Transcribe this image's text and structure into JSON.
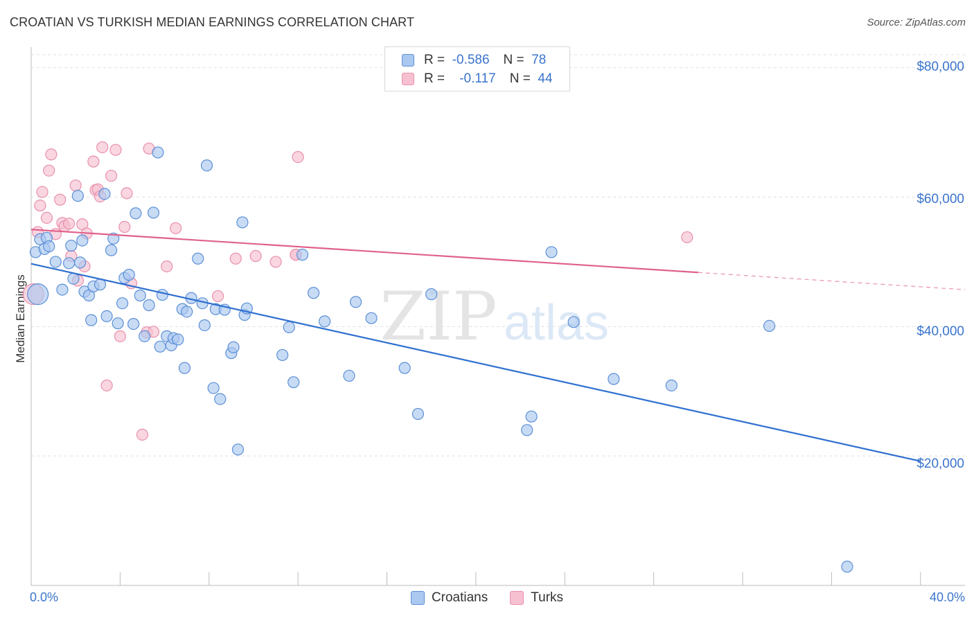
{
  "title": "CROATIAN VS TURKISH MEDIAN EARNINGS CORRELATION CHART",
  "source": "Source: ZipAtlas.com",
  "watermark": {
    "zip": "ZIP",
    "atlas": "atlas"
  },
  "legend": {
    "rows": [
      {
        "r_label": "R =",
        "r_value": "-0.586",
        "n_label": "N =",
        "n_value": "78"
      },
      {
        "r_label": "R =",
        "r_value": "-0.117",
        "n_label": "N =",
        "n_value": "44"
      }
    ]
  },
  "bottom_legend": [
    "Croatians",
    "Turks"
  ],
  "colors": {
    "croatians_fill": "#aac8f0",
    "croatians_stroke": "#5b8fd6",
    "croatians_line": "#2e6fd0",
    "turks_fill": "#f6c0d0",
    "turks_stroke": "#e890ad",
    "turks_line": "#e0628c",
    "tick_text": "#3a74cc",
    "grid": "#e0e0e0"
  },
  "chart_data": {
    "type": "scatter",
    "title": "CROATIAN VS TURKISH MEDIAN EARNINGS CORRELATION CHART",
    "xlabel": "",
    "ylabel": "Median Earnings",
    "xlim": [
      0,
      0.42
    ],
    "ylim": [
      0,
      82000
    ],
    "x_tick_labels": [
      "0.0%",
      "40.0%"
    ],
    "y_ticks": [
      20000,
      40000,
      60000,
      80000
    ],
    "y_tick_labels": [
      "$20,000",
      "$40,000",
      "$60,000",
      "$80,000"
    ],
    "series": [
      {
        "name": "Croatians",
        "R": -0.586,
        "N": 78,
        "trend": {
          "x": [
            0,
            0.4
          ],
          "y": [
            49700,
            19200
          ],
          "dashed_from_x": null
        },
        "points": [
          [
            0.002,
            51500
          ],
          [
            0.003,
            45000
          ],
          [
            0.004,
            53500
          ],
          [
            0.006,
            52000
          ],
          [
            0.007,
            53700
          ],
          [
            0.008,
            52400
          ],
          [
            0.011,
            50000
          ],
          [
            0.014,
            45700
          ],
          [
            0.017,
            49800
          ],
          [
            0.018,
            52500
          ],
          [
            0.019,
            47400
          ],
          [
            0.021,
            60200
          ],
          [
            0.022,
            49900
          ],
          [
            0.023,
            53300
          ],
          [
            0.024,
            45400
          ],
          [
            0.026,
            44800
          ],
          [
            0.027,
            41000
          ],
          [
            0.028,
            46200
          ],
          [
            0.031,
            46500
          ],
          [
            0.033,
            60500
          ],
          [
            0.034,
            41600
          ],
          [
            0.036,
            51800
          ],
          [
            0.037,
            53600
          ],
          [
            0.039,
            40500
          ],
          [
            0.041,
            43600
          ],
          [
            0.042,
            47500
          ],
          [
            0.044,
            48000
          ],
          [
            0.046,
            40400
          ],
          [
            0.047,
            57500
          ],
          [
            0.049,
            44800
          ],
          [
            0.051,
            38500
          ],
          [
            0.053,
            43300
          ],
          [
            0.055,
            57600
          ],
          [
            0.057,
            66900
          ],
          [
            0.058,
            36900
          ],
          [
            0.059,
            44900
          ],
          [
            0.061,
            38500
          ],
          [
            0.063,
            37100
          ],
          [
            0.064,
            38200
          ],
          [
            0.066,
            38000
          ],
          [
            0.068,
            42700
          ],
          [
            0.069,
            33600
          ],
          [
            0.07,
            42300
          ],
          [
            0.072,
            44400
          ],
          [
            0.075,
            50500
          ],
          [
            0.077,
            43600
          ],
          [
            0.078,
            40200
          ],
          [
            0.079,
            64900
          ],
          [
            0.082,
            30500
          ],
          [
            0.083,
            42700
          ],
          [
            0.085,
            28800
          ],
          [
            0.087,
            42600
          ],
          [
            0.09,
            35900
          ],
          [
            0.091,
            36800
          ],
          [
            0.093,
            21000
          ],
          [
            0.095,
            56100
          ],
          [
            0.096,
            41800
          ],
          [
            0.097,
            42800
          ],
          [
            0.113,
            35600
          ],
          [
            0.116,
            39900
          ],
          [
            0.118,
            31400
          ],
          [
            0.122,
            51100
          ],
          [
            0.127,
            45200
          ],
          [
            0.132,
            40800
          ],
          [
            0.143,
            32400
          ],
          [
            0.146,
            43800
          ],
          [
            0.153,
            41300
          ],
          [
            0.168,
            33600
          ],
          [
            0.174,
            26500
          ],
          [
            0.18,
            45000
          ],
          [
            0.223,
            24000
          ],
          [
            0.225,
            26100
          ],
          [
            0.234,
            51500
          ],
          [
            0.244,
            40700
          ],
          [
            0.262,
            31900
          ],
          [
            0.288,
            30900
          ],
          [
            0.332,
            40100
          ],
          [
            0.367,
            2900
          ]
        ]
      },
      {
        "name": "Turks",
        "R": -0.117,
        "N": 44,
        "trend": {
          "x": [
            0,
            0.42
          ],
          "y": [
            55000,
            45700
          ],
          "dashed_from_x": 0.3
        },
        "points": [
          [
            0.001,
            45000
          ],
          [
            0.003,
            54600
          ],
          [
            0.004,
            58700
          ],
          [
            0.005,
            60800
          ],
          [
            0.007,
            56800
          ],
          [
            0.008,
            64100
          ],
          [
            0.009,
            66600
          ],
          [
            0.011,
            54300
          ],
          [
            0.013,
            59600
          ],
          [
            0.014,
            56000
          ],
          [
            0.015,
            55500
          ],
          [
            0.017,
            55900
          ],
          [
            0.018,
            50900
          ],
          [
            0.02,
            61800
          ],
          [
            0.021,
            47100
          ],
          [
            0.023,
            55800
          ],
          [
            0.024,
            49300
          ],
          [
            0.025,
            54400
          ],
          [
            0.028,
            65500
          ],
          [
            0.029,
            61100
          ],
          [
            0.03,
            61200
          ],
          [
            0.031,
            60100
          ],
          [
            0.032,
            67700
          ],
          [
            0.034,
            30900
          ],
          [
            0.036,
            63300
          ],
          [
            0.038,
            67300
          ],
          [
            0.04,
            38500
          ],
          [
            0.042,
            55400
          ],
          [
            0.043,
            60600
          ],
          [
            0.045,
            46700
          ],
          [
            0.05,
            23300
          ],
          [
            0.052,
            39100
          ],
          [
            0.053,
            67500
          ],
          [
            0.055,
            39200
          ],
          [
            0.061,
            49300
          ],
          [
            0.065,
            55200
          ],
          [
            0.084,
            44700
          ],
          [
            0.092,
            50500
          ],
          [
            0.101,
            50900
          ],
          [
            0.11,
            50000
          ],
          [
            0.119,
            51100
          ],
          [
            0.119,
            51100
          ],
          [
            0.12,
            66200
          ],
          [
            0.295,
            53800
          ]
        ]
      }
    ]
  }
}
